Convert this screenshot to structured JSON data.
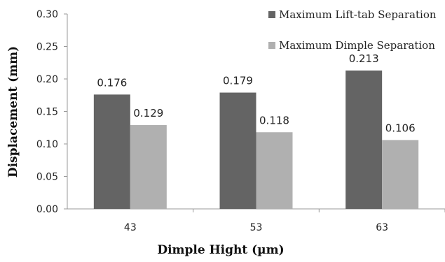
{
  "chart_data": {
    "type": "bar",
    "title": "",
    "xlabel": "Dimple Hight (µm)",
    "ylabel": "Displacement (mm)",
    "categories": [
      "43",
      "53",
      "63"
    ],
    "ylim": [
      0,
      0.3
    ],
    "ytick_step": 0.05,
    "yticks": [
      "0.00",
      "0.05",
      "0.10",
      "0.15",
      "0.20",
      "0.25",
      "0.30"
    ],
    "grid": false,
    "legend_position": "top-right",
    "series": [
      {
        "name": "Maximum Lift-tab Separation",
        "values": [
          0.176,
          0.179,
          0.213
        ],
        "labels": [
          "0.176",
          "0.179",
          "0.213"
        ],
        "color": "#646464"
      },
      {
        "name": "Maximum Dimple Separation",
        "values": [
          0.129,
          0.118,
          0.106
        ],
        "labels": [
          "0.129",
          "0.118",
          "0.106"
        ],
        "color": "#b0b0b0"
      }
    ]
  }
}
